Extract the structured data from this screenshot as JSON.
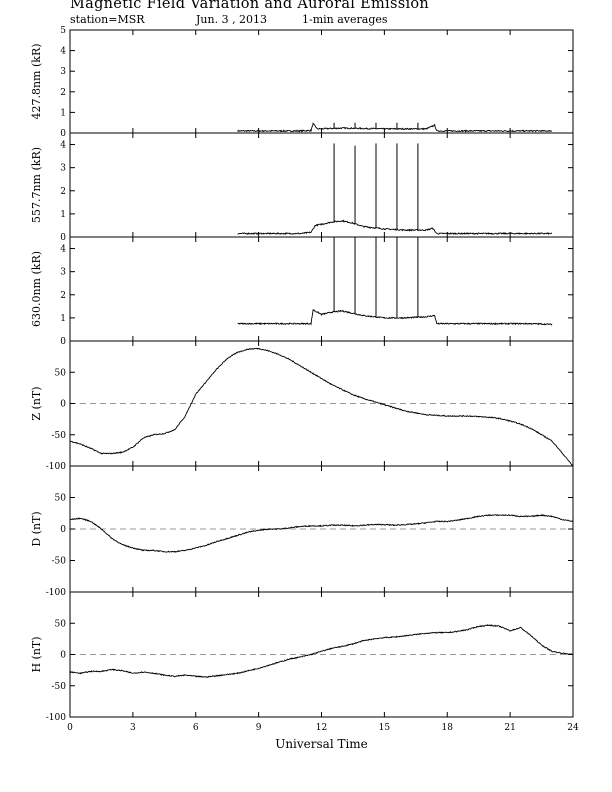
{
  "header": {
    "title": "Magnetic Field Variation and Auroral Emission",
    "station": "station=MSR",
    "date": "Jun. 3  , 2013",
    "averaging": "1-min averages"
  },
  "chart_data": [
    {
      "type": "line",
      "ylabel": "427.8nm (kR)",
      "ylim": [
        0,
        5
      ],
      "yticks": [
        0,
        1,
        2,
        3,
        4,
        5
      ],
      "data_window": [
        8,
        23
      ],
      "zero_line": false,
      "series": [
        {
          "x": [
            8,
            9,
            10,
            11,
            11.5,
            11.6,
            11.8,
            12.5,
            13,
            14,
            15,
            16,
            17,
            17.4,
            17.5,
            18,
            19,
            20,
            21,
            22,
            23
          ],
          "values": [
            0.1,
            0.1,
            0.1,
            0.1,
            0.12,
            0.45,
            0.2,
            0.22,
            0.24,
            0.22,
            0.2,
            0.2,
            0.2,
            0.38,
            0.1,
            0.1,
            0.1,
            0.1,
            0.1,
            0.1,
            0.1
          ]
        }
      ],
      "spikes": [
        {
          "x": 12.6,
          "peak": 0.5
        },
        {
          "x": 13.6,
          "peak": 0.5
        },
        {
          "x": 14.6,
          "peak": 0.5
        },
        {
          "x": 15.6,
          "peak": 0.5
        },
        {
          "x": 16.6,
          "peak": 0.5
        }
      ]
    },
    {
      "type": "line",
      "ylabel": "557.7nm (kR)",
      "ylim": [
        0,
        4.5
      ],
      "yticks": [
        0,
        1,
        2,
        3,
        4
      ],
      "data_window": [
        8,
        23
      ],
      "zero_line": false,
      "series": [
        {
          "x": [
            8,
            9,
            10,
            11,
            11.5,
            11.7,
            12,
            12.5,
            13,
            13.5,
            14,
            15,
            16,
            17,
            17.3,
            17.5,
            18,
            19,
            20,
            21,
            22,
            23
          ],
          "values": [
            0.15,
            0.15,
            0.15,
            0.15,
            0.2,
            0.5,
            0.55,
            0.65,
            0.7,
            0.6,
            0.45,
            0.35,
            0.3,
            0.3,
            0.38,
            0.15,
            0.15,
            0.15,
            0.15,
            0.15,
            0.15,
            0.15
          ]
        }
      ],
      "spikes": [
        {
          "x": 12.6,
          "peak": 4.05
        },
        {
          "x": 13.6,
          "peak": 3.95
        },
        {
          "x": 14.6,
          "peak": 4.05
        },
        {
          "x": 15.6,
          "peak": 4.05
        },
        {
          "x": 16.6,
          "peak": 4.05
        }
      ]
    },
    {
      "type": "line",
      "ylabel": "630.0nm (kR)",
      "ylim": [
        0,
        4.5
      ],
      "yticks": [
        0,
        1,
        2,
        3,
        4
      ],
      "data_window": [
        8,
        23
      ],
      "zero_line": false,
      "series": [
        {
          "x": [
            8,
            9,
            10,
            11,
            11.5,
            11.6,
            12,
            12.5,
            13,
            13.5,
            14,
            15,
            16,
            17,
            17.4,
            17.5,
            18,
            19,
            20,
            21,
            22,
            23
          ],
          "values": [
            0.75,
            0.75,
            0.75,
            0.75,
            0.75,
            1.35,
            1.15,
            1.25,
            1.3,
            1.2,
            1.1,
            1.0,
            1.0,
            1.05,
            1.1,
            0.75,
            0.75,
            0.75,
            0.75,
            0.75,
            0.75,
            0.72
          ]
        }
      ],
      "spikes": [
        {
          "x": 12.6,
          "peak": 4.5
        },
        {
          "x": 13.6,
          "peak": 4.5
        },
        {
          "x": 14.6,
          "peak": 4.5
        },
        {
          "x": 15.6,
          "peak": 4.5
        },
        {
          "x": 16.6,
          "peak": 4.5
        }
      ]
    },
    {
      "type": "line",
      "ylabel": "Z (nT)",
      "ylim": [
        -100,
        100
      ],
      "yticks": [
        -100,
        -50,
        0,
        50
      ],
      "zero_line": true,
      "series": [
        {
          "x": [
            0,
            0.5,
            1,
            1.5,
            2,
            2.5,
            3,
            3.5,
            4,
            4.5,
            5,
            5.5,
            6,
            6.5,
            7,
            7.5,
            8,
            8.5,
            9,
            9.5,
            10,
            10.5,
            11,
            11.5,
            12,
            12.5,
            13,
            13.5,
            14,
            14.5,
            15,
            15.5,
            16,
            16.5,
            17,
            17.5,
            18,
            18.5,
            19,
            19.5,
            20,
            20.5,
            21,
            21.5,
            22,
            22.5,
            23,
            23.5,
            24
          ],
          "values": [
            -60,
            -65,
            -72,
            -80,
            -80,
            -78,
            -70,
            -55,
            -50,
            -48,
            -42,
            -20,
            15,
            35,
            55,
            72,
            82,
            87,
            88,
            84,
            78,
            70,
            60,
            50,
            40,
            30,
            22,
            14,
            8,
            3,
            -2,
            -7,
            -12,
            -15,
            -18,
            -19,
            -20,
            -20,
            -20,
            -21,
            -22,
            -24,
            -28,
            -33,
            -40,
            -50,
            -60,
            -80,
            -100
          ]
        }
      ]
    },
    {
      "type": "line",
      "ylabel": "D (nT)",
      "ylim": [
        -100,
        100
      ],
      "yticks": [
        -100,
        -50,
        0,
        50
      ],
      "zero_line": true,
      "series": [
        {
          "x": [
            0,
            0.5,
            1,
            1.5,
            2,
            2.5,
            3,
            3.5,
            4,
            4.5,
            5,
            5.5,
            6,
            6.5,
            7,
            7.5,
            8,
            8.5,
            9,
            9.5,
            10,
            10.5,
            11,
            11.5,
            12,
            12.5,
            13,
            13.5,
            14,
            14.5,
            15,
            15.5,
            16,
            16.5,
            17,
            17.5,
            18,
            18.5,
            19,
            19.5,
            20,
            20.5,
            21,
            21.5,
            22,
            22.5,
            23,
            23.5,
            24
          ],
          "values": [
            15,
            17,
            12,
            0,
            -15,
            -25,
            -30,
            -34,
            -34,
            -36,
            -36,
            -34,
            -30,
            -26,
            -20,
            -15,
            -10,
            -5,
            -2,
            0,
            0,
            2,
            4,
            5,
            5,
            6,
            6,
            5,
            6,
            7,
            7,
            6,
            7,
            8,
            10,
            12,
            12,
            14,
            17,
            20,
            22,
            22,
            22,
            20,
            20,
            22,
            20,
            15,
            12
          ]
        }
      ]
    },
    {
      "type": "line",
      "ylabel": "H (nT)",
      "ylim": [
        -100,
        100
      ],
      "yticks": [
        -100,
        -50,
        0,
        50
      ],
      "zero_line": true,
      "series": [
        {
          "x": [
            0,
            0.5,
            1,
            1.5,
            2,
            2.5,
            3,
            3.5,
            4,
            4.5,
            5,
            5.5,
            6,
            6.5,
            7,
            7.5,
            8,
            8.5,
            9,
            9.5,
            10,
            10.5,
            11,
            11.5,
            12,
            12.5,
            13,
            13.5,
            14,
            14.5,
            15,
            15.5,
            16,
            16.5,
            17,
            17.5,
            18,
            18.5,
            19,
            19.5,
            20,
            20.5,
            21,
            21.5,
            22,
            22.5,
            23,
            23.5,
            24
          ],
          "values": [
            -28,
            -30,
            -27,
            -27,
            -24,
            -26,
            -30,
            -28,
            -30,
            -33,
            -35,
            -33,
            -35,
            -36,
            -34,
            -32,
            -30,
            -26,
            -22,
            -17,
            -12,
            -7,
            -4,
            0,
            5,
            10,
            13,
            17,
            22,
            25,
            27,
            28,
            30,
            32,
            34,
            35,
            35,
            37,
            40,
            45,
            47,
            45,
            38,
            43,
            30,
            15,
            5,
            2,
            0
          ]
        }
      ]
    }
  ],
  "x_axis": {
    "label": "Universal Time",
    "xlim": [
      0,
      24
    ],
    "ticks": [
      0,
      3,
      6,
      9,
      12,
      15,
      18,
      21,
      24
    ]
  }
}
